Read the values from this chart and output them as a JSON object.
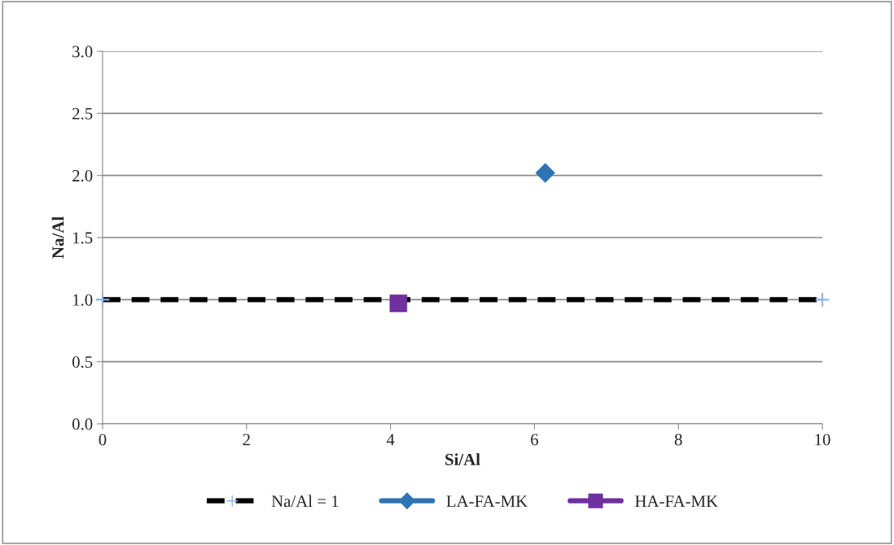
{
  "chart_data": {
    "type": "line",
    "xlabel": "Si/Al",
    "ylabel": "Na/Al",
    "xlim": [
      0,
      10
    ],
    "xticks": [
      0,
      2,
      4,
      6,
      8,
      10
    ],
    "ylim": [
      0,
      3.0
    ],
    "yticks": [
      {
        "value": 0,
        "label": "0.0"
      },
      {
        "value": 0.5,
        "label": "0.5"
      },
      {
        "value": 1,
        "label": "1.0"
      },
      {
        "value": 1.5,
        "label": "1.5"
      },
      {
        "value": 2,
        "label": "2.0"
      },
      {
        "value": 2.5,
        "label": "2.5"
      },
      {
        "value": 3,
        "label": "3.0"
      }
    ],
    "grid": "y",
    "legend": "bottom",
    "series": [
      {
        "name": "Na/Al = 1",
        "color": "#000000",
        "x": [
          0,
          10
        ],
        "values": [
          1,
          1
        ],
        "line_style": "dashed",
        "marker": "cross",
        "colors": [
          "#8db4e2",
          "#8db4e2"
        ]
      },
      {
        "name": "LA-FA-MK",
        "color": "#2e75b6",
        "x": [
          6.15
        ],
        "values": [
          2.02
        ],
        "marker": "diamond"
      },
      {
        "name": "HA-FA-MK",
        "color": "#7030a0",
        "x": [
          4.11
        ],
        "values": [
          0.97
        ],
        "marker": "square"
      }
    ]
  }
}
